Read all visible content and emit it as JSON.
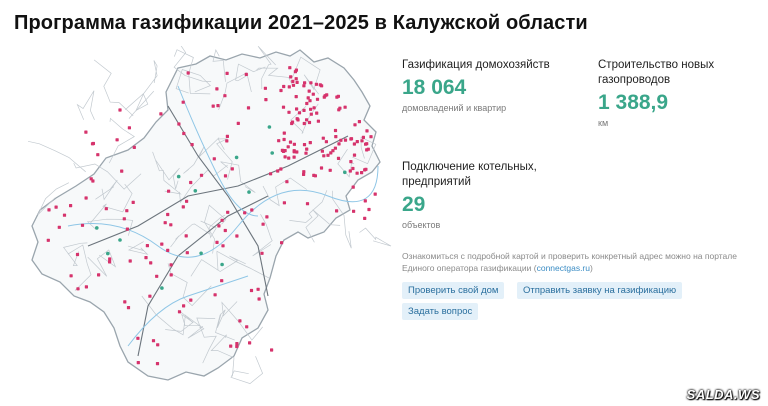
{
  "title": "Программа газификации 2021–2025 в Калужской области",
  "stats": {
    "homes": {
      "label": "Газификация домохозяйств",
      "value": "18 064",
      "unit": "домовладений и квартир"
    },
    "pipes": {
      "label": "Строительство новых газопроводов",
      "value": "1 388,9",
      "unit": "км"
    },
    "boilers": {
      "label": "Подключение котельных, предприятий",
      "value": "29",
      "unit": "объектов"
    }
  },
  "note": {
    "text": "Ознакомиться с подробной картой и проверить конкретный адрес можно на портале Единого оператора газификации (",
    "link": "connectgas.ru",
    "suffix": ")"
  },
  "buttons": {
    "check": "Проверить свой дом",
    "apply": "Отправить заявку на газификацию",
    "ask": "Задать вопрос"
  },
  "watermark": "SALDA.WS",
  "colors": {
    "accent": "#3aa68a",
    "marker": "#d6336c",
    "link": "#3a8cc4",
    "button_bg": "#e3f0f9"
  }
}
